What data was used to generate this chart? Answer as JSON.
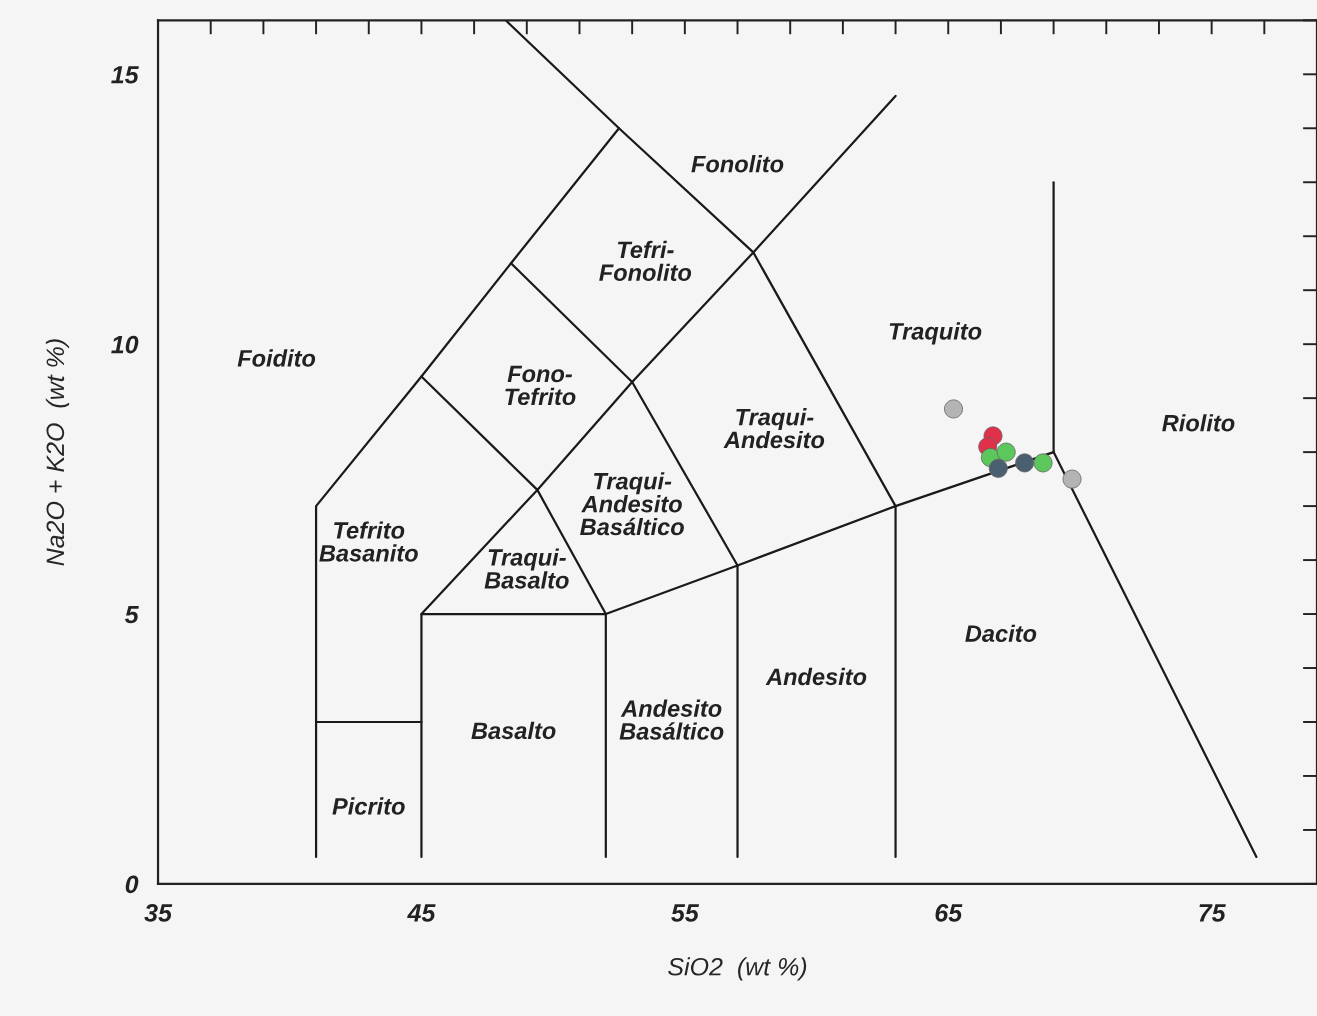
{
  "chart_data": {
    "type": "scatter",
    "xlabel": "SiO2  (wt %)",
    "ylabel": "Na2O + K2O  (wt %)",
    "xlim": [
      35,
      79
    ],
    "ylim": [
      0,
      16
    ],
    "xticks": [
      35,
      {
        "value": 37,
        "label": null
      },
      {
        "value": 39,
        "label": null
      },
      {
        "value": 41,
        "label": null
      },
      {
        "value": 43,
        "label": null
      },
      45,
      {
        "value": 47,
        "label": null
      },
      {
        "value": 49,
        "label": null
      },
      {
        "value": 51,
        "label": null
      },
      {
        "value": 53,
        "label": null
      },
      55,
      {
        "value": 57,
        "label": null
      },
      {
        "value": 59,
        "label": null
      },
      {
        "value": 61,
        "label": null
      },
      {
        "value": 63,
        "label": null
      },
      65,
      {
        "value": 67,
        "label": null
      },
      {
        "value": 69,
        "label": null
      },
      {
        "value": 71,
        "label": null
      },
      {
        "value": 73,
        "label": null
      },
      75,
      {
        "value": 77,
        "label": null
      }
    ],
    "yticks": [
      0,
      {
        "value": 1,
        "label": null
      },
      {
        "value": 2,
        "label": null
      },
      {
        "value": 3,
        "label": null
      },
      {
        "value": 4,
        "label": null
      },
      5,
      {
        "value": 6,
        "label": null
      },
      {
        "value": 7,
        "label": null
      },
      {
        "value": 8,
        "label": null
      },
      {
        "value": 9,
        "label": null
      },
      10,
      {
        "value": 11,
        "label": null
      },
      {
        "value": 12,
        "label": null
      },
      {
        "value": 13,
        "label": null
      },
      {
        "value": 14,
        "label": null
      },
      15,
      {
        "value": 16,
        "label": null
      }
    ],
    "grid": false,
    "legend": false,
    "series": [
      {
        "type": "line",
        "marker": "none",
        "color": "#1a1a1a",
        "x": [
          41,
          41,
          45
        ],
        "values": [
          0.5,
          3,
          3
        ]
      },
      {
        "type": "line",
        "marker": "none",
        "color": "#1a1a1a",
        "x": [
          41,
          41,
          45,
          48.4,
          52.5,
          48.2
        ],
        "values": [
          3,
          7,
          9.4,
          11.5,
          14,
          16
        ]
      },
      {
        "type": "line",
        "marker": "none",
        "color": "#1a1a1a",
        "x": [
          45,
          45,
          49.4,
          53,
          57.6,
          63
        ],
        "values": [
          0.5,
          5,
          7.3,
          9.3,
          11.7,
          14.6
        ]
      },
      {
        "type": "line",
        "marker": "none",
        "color": "#1a1a1a",
        "x": [
          45,
          52,
          57,
          63,
          69
        ],
        "values": [
          5,
          5,
          5.9,
          7,
          8
        ]
      },
      {
        "type": "line",
        "marker": "none",
        "color": "#1a1a1a",
        "x": [
          52,
          52
        ],
        "values": [
          0.5,
          5
        ]
      },
      {
        "type": "line",
        "marker": "none",
        "color": "#1a1a1a",
        "x": [
          57,
          57
        ],
        "values": [
          0.5,
          5.9
        ]
      },
      {
        "type": "line",
        "marker": "none",
        "color": "#1a1a1a",
        "x": [
          63,
          63
        ],
        "values": [
          0.5,
          7
        ]
      },
      {
        "type": "line",
        "marker": "none",
        "color": "#1a1a1a",
        "x": [
          69,
          69
        ],
        "values": [
          13,
          8
        ]
      },
      {
        "type": "line",
        "marker": "none",
        "color": "#1a1a1a",
        "x": [
          69,
          76.7
        ],
        "values": [
          8,
          0.5
        ]
      },
      {
        "type": "line",
        "marker": "none",
        "color": "#1a1a1a",
        "x": [
          45,
          49.4,
          52
        ],
        "values": [
          9.4,
          7.3,
          5
        ]
      },
      {
        "type": "line",
        "marker": "none",
        "color": "#1a1a1a",
        "x": [
          48.4,
          53,
          57
        ],
        "values": [
          11.5,
          9.3,
          5.9
        ]
      },
      {
        "type": "line",
        "marker": "none",
        "color": "#1a1a1a",
        "x": [
          52.5,
          57.6,
          63
        ],
        "values": [
          14,
          11.7,
          7
        ]
      },
      {
        "marker": "circle",
        "color": "#b4b4b4",
        "x": [
          65.2,
          69.7
        ],
        "values": [
          8.8,
          7.5
        ]
      },
      {
        "marker": "circle",
        "color": "#e0304a",
        "x": [
          66.7,
          66.5
        ],
        "values": [
          8.3,
          8.1
        ]
      },
      {
        "marker": "circle",
        "color": "#5cc85c",
        "x": [
          66.6,
          67.2,
          68.6
        ],
        "values": [
          7.9,
          8.0,
          7.8
        ]
      },
      {
        "marker": "circle",
        "color": "#4a6070",
        "x": [
          66.9,
          67.9
        ],
        "values": [
          7.7,
          7.8
        ]
      }
    ],
    "annotations": [
      "Foidito",
      "Picrito",
      "Basalto",
      "Andesito\nBasáltico",
      "Andesito",
      "Dacito",
      "Riolito",
      "Traquito",
      "Tefrito\nBasanito",
      "Traqui-\nBasalto",
      "Traqui-\nAndesito\nBasáltico",
      "Traqui-\nAndesito",
      "Fono-\nTefrito",
      "Tefri-\nFonolito",
      "Fonolito"
    ]
  }
}
